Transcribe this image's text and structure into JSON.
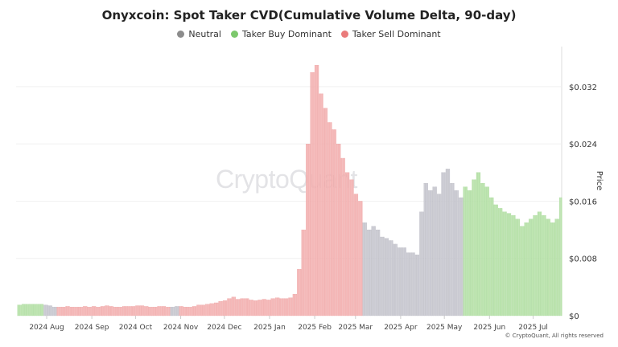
{
  "chart_data": {
    "type": "bar",
    "title": "Onyxcoin: Spot Taker CVD(Cumulative Volume Delta, 90-day)",
    "ylabel": "Price",
    "ylim": [
      0,
      0.0376
    ],
    "yticks": [
      "$0",
      "$0.008",
      "$0.016",
      "$0.024",
      "$0.032"
    ],
    "ytick_values": [
      0,
      0.008,
      0.016,
      0.024,
      0.032
    ],
    "xlim": [
      "2024-07-11",
      "2025-07-20"
    ],
    "xticks": [
      {
        "date": "2024-08-01",
        "label": "2024 Aug"
      },
      {
        "date": "2024-09-01",
        "label": "2024 Sep"
      },
      {
        "date": "2024-10-01",
        "label": "2024 Oct"
      },
      {
        "date": "2024-11-01",
        "label": "2024 Nov"
      },
      {
        "date": "2024-12-01",
        "label": "2024 Dec"
      },
      {
        "date": "2025-01-01",
        "label": "2025 Jan"
      },
      {
        "date": "2025-02-01",
        "label": "2025 Feb"
      },
      {
        "date": "2025-03-01",
        "label": "2025 Mar"
      },
      {
        "date": "2025-04-01",
        "label": "2025 Apr"
      },
      {
        "date": "2025-05-01",
        "label": "2025 May"
      },
      {
        "date": "2025-06-01",
        "label": "2025 Jun"
      },
      {
        "date": "2025-07-01",
        "label": "2025 Jul"
      }
    ],
    "grid": true,
    "legend_placement": "top-center",
    "legend": [
      {
        "key": "neutral",
        "name": "Neutral",
        "color": "#8c8c8c"
      },
      {
        "key": "buy",
        "name": "Taker Buy Dominant",
        "color": "#7cc86c"
      },
      {
        "key": "sell",
        "name": "Taker Sell Dominant",
        "color": "#ea7b7b"
      }
    ],
    "bar_colors": {
      "neutral": "#cfcfd6",
      "buy": "#bfe6b2",
      "sell": "#f6bcbc"
    },
    "bar_edge_colors": {
      "neutral": "#b3b3bd",
      "buy": "#9fd48f",
      "sell": "#eb9a9a"
    },
    "regimes": [
      {
        "from": "2024-07-11",
        "to": "2024-07-28",
        "class": "buy"
      },
      {
        "from": "2024-07-29",
        "to": "2024-08-06",
        "class": "neutral"
      },
      {
        "from": "2024-08-07",
        "to": "2024-10-23",
        "class": "sell"
      },
      {
        "from": "2024-10-24",
        "to": "2024-10-29",
        "class": "neutral"
      },
      {
        "from": "2024-10-30",
        "to": "2025-03-04",
        "class": "sell"
      },
      {
        "from": "2025-03-05",
        "to": "2025-05-12",
        "class": "neutral"
      },
      {
        "from": "2025-05-13",
        "to": "2025-07-20",
        "class": "buy"
      }
    ],
    "points": [
      [
        "2024-07-12",
        0.0015
      ],
      [
        "2024-07-15",
        0.0016
      ],
      [
        "2024-07-18",
        0.0016
      ],
      [
        "2024-07-21",
        0.0016
      ],
      [
        "2024-07-24",
        0.0016
      ],
      [
        "2024-07-27",
        0.0016
      ],
      [
        "2024-07-30",
        0.0015
      ],
      [
        "2024-08-02",
        0.0014
      ],
      [
        "2024-08-05",
        0.0012
      ],
      [
        "2024-08-08",
        0.0012
      ],
      [
        "2024-08-11",
        0.0012
      ],
      [
        "2024-08-14",
        0.0013
      ],
      [
        "2024-08-17",
        0.0012
      ],
      [
        "2024-08-20",
        0.0012
      ],
      [
        "2024-08-23",
        0.0012
      ],
      [
        "2024-08-26",
        0.0013
      ],
      [
        "2024-08-29",
        0.0012
      ],
      [
        "2024-09-01",
        0.0013
      ],
      [
        "2024-09-04",
        0.0012
      ],
      [
        "2024-09-07",
        0.0013
      ],
      [
        "2024-09-10",
        0.0014
      ],
      [
        "2024-09-13",
        0.0013
      ],
      [
        "2024-09-16",
        0.0012
      ],
      [
        "2024-09-19",
        0.0012
      ],
      [
        "2024-09-22",
        0.0013
      ],
      [
        "2024-09-25",
        0.0013
      ],
      [
        "2024-09-28",
        0.0013
      ],
      [
        "2024-10-01",
        0.0014
      ],
      [
        "2024-10-04",
        0.0014
      ],
      [
        "2024-10-07",
        0.0013
      ],
      [
        "2024-10-10",
        0.0012
      ],
      [
        "2024-10-13",
        0.0012
      ],
      [
        "2024-10-16",
        0.0013
      ],
      [
        "2024-10-19",
        0.0013
      ],
      [
        "2024-10-22",
        0.0012
      ],
      [
        "2024-10-25",
        0.0012
      ],
      [
        "2024-10-28",
        0.0013
      ],
      [
        "2024-10-31",
        0.0013
      ],
      [
        "2024-11-03",
        0.0012
      ],
      [
        "2024-11-06",
        0.0012
      ],
      [
        "2024-11-09",
        0.0013
      ],
      [
        "2024-11-12",
        0.0015
      ],
      [
        "2024-11-15",
        0.0015
      ],
      [
        "2024-11-18",
        0.0016
      ],
      [
        "2024-11-21",
        0.0017
      ],
      [
        "2024-11-24",
        0.0018
      ],
      [
        "2024-11-27",
        0.002
      ],
      [
        "2024-11-30",
        0.0021
      ],
      [
        "2024-12-03",
        0.0024
      ],
      [
        "2024-12-06",
        0.0026
      ],
      [
        "2024-12-09",
        0.0023
      ],
      [
        "2024-12-12",
        0.0024
      ],
      [
        "2024-12-15",
        0.0024
      ],
      [
        "2024-12-18",
        0.0022
      ],
      [
        "2024-12-21",
        0.0021
      ],
      [
        "2024-12-24",
        0.0022
      ],
      [
        "2024-12-27",
        0.0023
      ],
      [
        "2024-12-30",
        0.0022
      ],
      [
        "2025-01-02",
        0.0024
      ],
      [
        "2025-01-05",
        0.0025
      ],
      [
        "2025-01-08",
        0.0024
      ],
      [
        "2025-01-11",
        0.0024
      ],
      [
        "2025-01-14",
        0.0025
      ],
      [
        "2025-01-17",
        0.003
      ],
      [
        "2025-01-20",
        0.0065
      ],
      [
        "2025-01-23",
        0.012
      ],
      [
        "2025-01-26",
        0.024
      ],
      [
        "2025-01-29",
        0.034
      ],
      [
        "2025-02-01",
        0.035
      ],
      [
        "2025-02-04",
        0.031
      ],
      [
        "2025-02-07",
        0.029
      ],
      [
        "2025-02-10",
        0.027
      ],
      [
        "2025-02-13",
        0.026
      ],
      [
        "2025-02-16",
        0.024
      ],
      [
        "2025-02-19",
        0.022
      ],
      [
        "2025-02-22",
        0.02
      ],
      [
        "2025-02-25",
        0.019
      ],
      [
        "2025-02-28",
        0.017
      ],
      [
        "2025-03-03",
        0.016
      ],
      [
        "2025-03-06",
        0.013
      ],
      [
        "2025-03-09",
        0.012
      ],
      [
        "2025-03-12",
        0.0125
      ],
      [
        "2025-03-15",
        0.012
      ],
      [
        "2025-03-18",
        0.011
      ],
      [
        "2025-03-21",
        0.0108
      ],
      [
        "2025-03-24",
        0.0105
      ],
      [
        "2025-03-27",
        0.01
      ],
      [
        "2025-03-30",
        0.0095
      ],
      [
        "2025-04-02",
        0.0095
      ],
      [
        "2025-04-05",
        0.0088
      ],
      [
        "2025-04-08",
        0.0088
      ],
      [
        "2025-04-11",
        0.0085
      ],
      [
        "2025-04-14",
        0.0145
      ],
      [
        "2025-04-17",
        0.0185
      ],
      [
        "2025-04-20",
        0.0175
      ],
      [
        "2025-04-23",
        0.018
      ],
      [
        "2025-04-26",
        0.017
      ],
      [
        "2025-04-29",
        0.02
      ],
      [
        "2025-05-02",
        0.0205
      ],
      [
        "2025-05-05",
        0.0185
      ],
      [
        "2025-05-08",
        0.0175
      ],
      [
        "2025-05-11",
        0.0165
      ],
      [
        "2025-05-14",
        0.018
      ],
      [
        "2025-05-17",
        0.0175
      ],
      [
        "2025-05-20",
        0.019
      ],
      [
        "2025-05-23",
        0.02
      ],
      [
        "2025-05-26",
        0.0185
      ],
      [
        "2025-05-29",
        0.018
      ],
      [
        "2025-06-01",
        0.0165
      ],
      [
        "2025-06-04",
        0.0155
      ],
      [
        "2025-06-07",
        0.015
      ],
      [
        "2025-06-10",
        0.0145
      ],
      [
        "2025-06-13",
        0.0143
      ],
      [
        "2025-06-16",
        0.014
      ],
      [
        "2025-06-19",
        0.0135
      ],
      [
        "2025-06-22",
        0.0125
      ],
      [
        "2025-06-25",
        0.013
      ],
      [
        "2025-06-28",
        0.0135
      ],
      [
        "2025-07-01",
        0.014
      ],
      [
        "2025-07-04",
        0.0145
      ],
      [
        "2025-07-07",
        0.014
      ],
      [
        "2025-07-10",
        0.0135
      ],
      [
        "2025-07-13",
        0.013
      ],
      [
        "2025-07-16",
        0.0135
      ],
      [
        "2025-07-19",
        0.0165
      ]
    ]
  },
  "watermark": "CryptoQuant",
  "copyright": "© CryptoQuant, All rights reserved"
}
